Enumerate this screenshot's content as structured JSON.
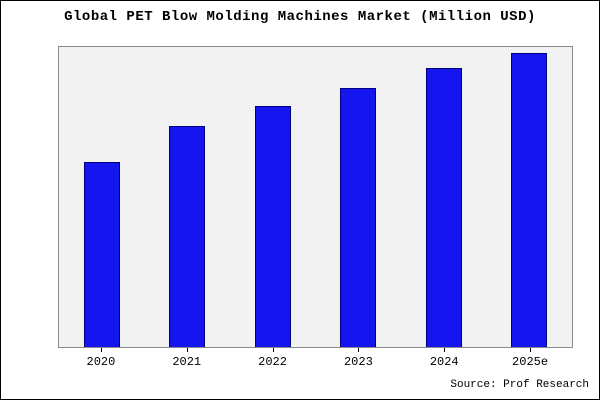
{
  "source": "Source: Prof Research",
  "chart_data": {
    "type": "bar",
    "title": "Global PET Blow Molding Machines Market (Million USD)",
    "categories": [
      "2020",
      "2021",
      "2022",
      "2023",
      "2024",
      "2025e"
    ],
    "values": [
      63,
      75,
      82,
      88,
      95,
      100
    ],
    "xlabel": "",
    "ylabel": "",
    "ylim": [
      0,
      102
    ],
    "grid": false,
    "legend": "none",
    "bar_color": "#1515f0",
    "bar_edge_color": "#00007f",
    "plot_background": "#f2f2f2",
    "figure_background": "#ffffff"
  }
}
